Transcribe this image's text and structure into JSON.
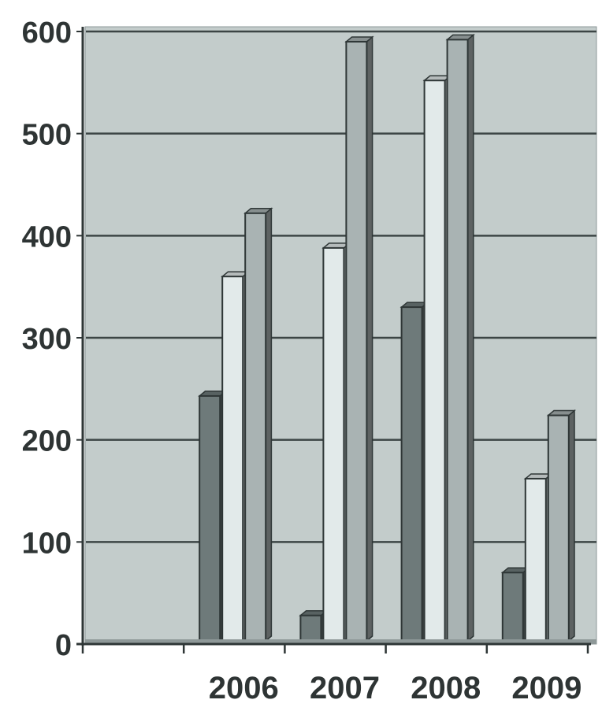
{
  "chart_data": {
    "type": "bar",
    "style": "3d-clustered-column",
    "categories": [
      "",
      "2006",
      "2007",
      "2008",
      "2009"
    ],
    "series": [
      {
        "values": [
          0,
          243,
          28,
          330,
          70
        ],
        "color": "#6e7a7a"
      },
      {
        "values": [
          0,
          360,
          388,
          552,
          162
        ],
        "color": "#e2eaea"
      },
      {
        "values": [
          0,
          422,
          590,
          592,
          224
        ],
        "color": "#a9b3b3"
      }
    ],
    "title": "",
    "xlabel": "",
    "ylabel": "",
    "ylim": [
      0,
      600
    ],
    "yticks": [
      "0",
      "100",
      "200",
      "300",
      "400",
      "500",
      "600"
    ],
    "grid": true,
    "legend": "none",
    "colors": {
      "plot_background": "#c3cccb",
      "gridline": "#3c4545",
      "outline": "#2e3636"
    }
  }
}
